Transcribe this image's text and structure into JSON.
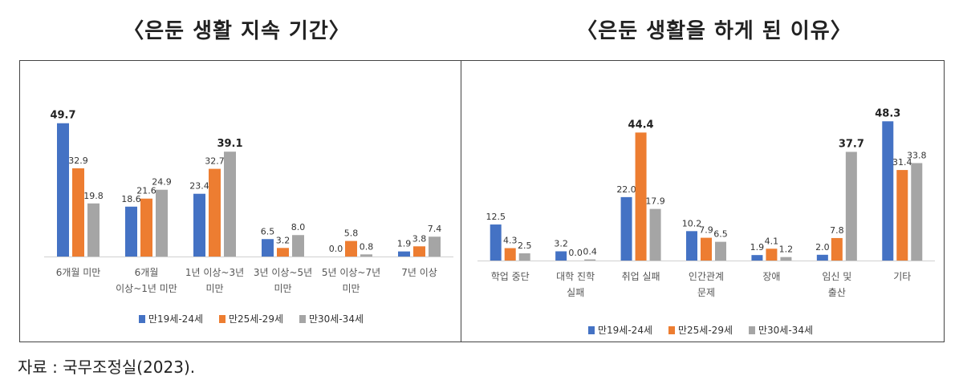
{
  "titles": {
    "left": "〈은둔 생활 지속 기간〉",
    "right": "〈은둔 생활을 하게 된 이유〉"
  },
  "source": "자료 : 국무조정실(2023).",
  "colors": {
    "s1": "#4472C4",
    "s2": "#ED7D31",
    "s3": "#A5A5A5"
  },
  "chart_data": [
    {
      "type": "bar",
      "title": "〈은둔 생활 지속 기간〉",
      "categories": [
        [
          "6개월 미만"
        ],
        [
          "6개월",
          "이상~1년 미만"
        ],
        [
          "1년 이상~3년",
          "미만"
        ],
        [
          "3년 이상~5년",
          "미만"
        ],
        [
          "5년 이상~7년",
          "미만"
        ],
        [
          "7년 이상"
        ]
      ],
      "series": [
        {
          "name": "만19세-24세",
          "values": [
            49.7,
            18.6,
            23.4,
            6.5,
            0.0,
            1.9
          ]
        },
        {
          "name": "만25세-29세",
          "values": [
            32.9,
            21.6,
            32.7,
            3.2,
            5.8,
            3.8
          ]
        },
        {
          "name": "만30세-34세",
          "values": [
            19.8,
            24.9,
            39.1,
            8.0,
            0.8,
            7.4
          ]
        }
      ],
      "ylim": [
        0,
        55
      ],
      "grid": false,
      "legend": "bottom"
    },
    {
      "type": "bar",
      "title": "〈은둔 생활을 하게 된 이유〉",
      "categories": [
        [
          "학업 중단"
        ],
        [
          "대학 진학",
          "실패"
        ],
        [
          "취업 실패"
        ],
        [
          "인간관계",
          "문제"
        ],
        [
          "장애"
        ],
        [
          "임신 및",
          "출산"
        ],
        [
          "기타"
        ]
      ],
      "series": [
        {
          "name": "만19세-24세",
          "values": [
            12.5,
            3.2,
            22.0,
            10.2,
            1.9,
            2.0,
            48.3
          ]
        },
        {
          "name": "만25세-29세",
          "values": [
            4.3,
            0.0,
            44.4,
            7.9,
            4.1,
            7.8,
            31.4
          ]
        },
        {
          "name": "만30세-34세",
          "values": [
            2.5,
            0.4,
            17.9,
            6.5,
            1.2,
            37.7,
            33.8
          ]
        }
      ],
      "ylim": [
        0,
        52
      ],
      "grid": false,
      "legend": "bottom"
    }
  ]
}
